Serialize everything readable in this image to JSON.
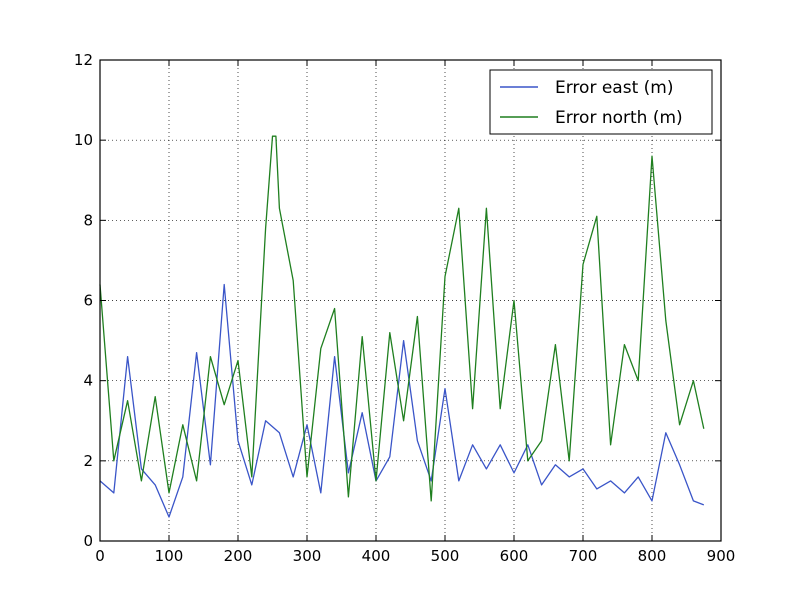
{
  "chart_data": {
    "type": "line",
    "title": "",
    "xlabel": "",
    "ylabel": "",
    "xlim": [
      0,
      900
    ],
    "ylim": [
      0,
      12
    ],
    "x_ticks": [
      0,
      100,
      200,
      300,
      400,
      500,
      600,
      700,
      800,
      900
    ],
    "y_ticks": [
      0,
      2,
      4,
      6,
      8,
      10,
      12
    ],
    "grid": true,
    "legend_position": "top-right",
    "colors": {
      "east": "#3a55c8",
      "north": "#1f7f1f"
    },
    "series": [
      {
        "name": "Error east (m)",
        "key": "east",
        "x": [
          0,
          20,
          40,
          60,
          80,
          100,
          120,
          140,
          160,
          180,
          200,
          220,
          240,
          260,
          280,
          300,
          320,
          340,
          360,
          380,
          400,
          420,
          440,
          460,
          480,
          500,
          520,
          540,
          560,
          580,
          600,
          620,
          640,
          660,
          680,
          700,
          720,
          740,
          760,
          780,
          800,
          820,
          840,
          860,
          875
        ],
        "values": [
          1.5,
          1.2,
          4.6,
          1.8,
          1.4,
          0.6,
          1.6,
          4.7,
          1.9,
          6.4,
          2.5,
          1.4,
          3.0,
          2.7,
          1.6,
          2.9,
          1.2,
          4.6,
          1.7,
          3.2,
          1.5,
          2.1,
          5.0,
          2.5,
          1.5,
          3.8,
          1.5,
          2.4,
          1.8,
          2.4,
          1.7,
          2.4,
          1.4,
          1.9,
          1.6,
          1.8,
          1.3,
          1.5,
          1.2,
          1.6,
          1.0,
          2.7,
          1.9,
          1.0,
          0.9
        ]
      },
      {
        "name": "Error north (m)",
        "key": "north",
        "x": [
          0,
          20,
          40,
          60,
          80,
          100,
          120,
          140,
          160,
          180,
          200,
          220,
          240,
          250,
          255,
          260,
          280,
          300,
          320,
          340,
          360,
          380,
          400,
          420,
          440,
          460,
          480,
          500,
          520,
          540,
          560,
          580,
          600,
          620,
          640,
          660,
          680,
          700,
          720,
          740,
          760,
          780,
          790,
          800,
          820,
          840,
          860,
          875
        ],
        "values": [
          6.4,
          2.0,
          3.5,
          1.5,
          3.6,
          1.2,
          2.9,
          1.5,
          4.6,
          3.4,
          4.5,
          1.6,
          7.8,
          10.1,
          10.1,
          8.3,
          6.5,
          1.6,
          4.8,
          5.8,
          1.1,
          5.1,
          1.5,
          5.2,
          3.0,
          5.6,
          1.0,
          6.6,
          8.3,
          3.3,
          8.3,
          3.3,
          6.0,
          2.0,
          2.5,
          4.9,
          2.0,
          6.9,
          8.1,
          2.4,
          4.9,
          4.0,
          6.8,
          9.6,
          5.5,
          2.9,
          4.0,
          2.8
        ]
      }
    ]
  }
}
